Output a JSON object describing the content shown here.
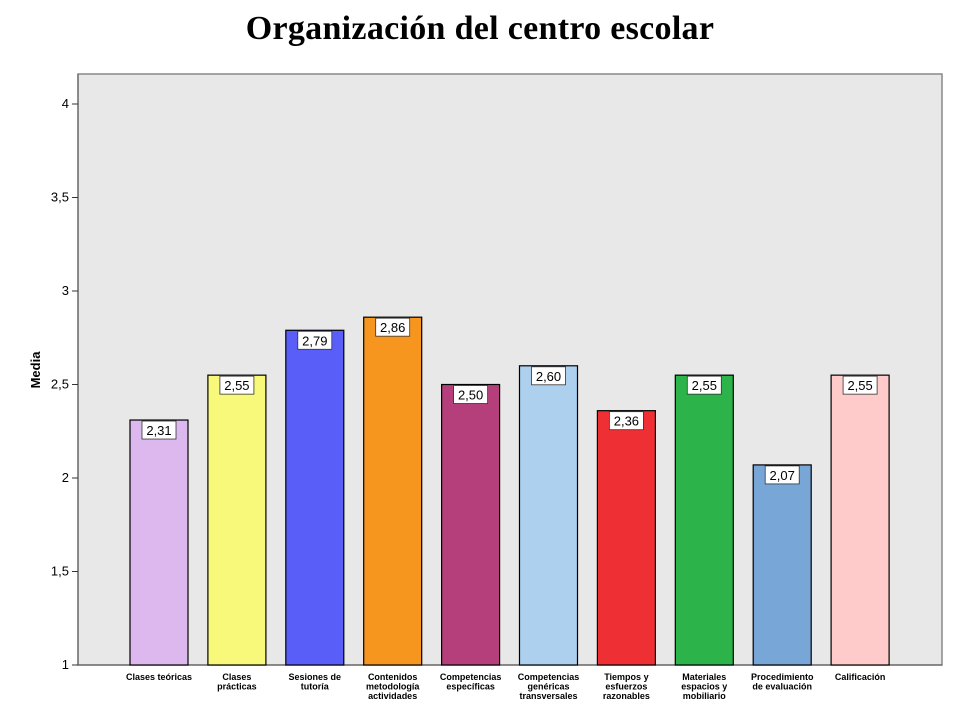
{
  "chart_data": {
    "type": "bar",
    "title": "Organización del centro escolar",
    "xlabel": "",
    "ylabel": "Media",
    "ylim": [
      1,
      4
    ],
    "yticks": [
      "1",
      "1,5",
      "2",
      "2,5",
      "3",
      "3,5",
      "4"
    ],
    "categories": [
      [
        "Clases teóricas"
      ],
      [
        "Clases",
        "prácticas"
      ],
      [
        "Sesiones de",
        "tutoría"
      ],
      [
        "Contenidos",
        "metodología",
        "actividades"
      ],
      [
        "Competencias",
        "específicas"
      ],
      [
        "Competencias",
        "genéricas",
        "transversales"
      ],
      [
        "Tiempos y",
        "esfuerzos",
        "razonables"
      ],
      [
        "Materiales",
        "espacios y",
        "mobiliario"
      ],
      [
        "Procedimiento",
        "de evaluación"
      ],
      [
        "Calificación"
      ]
    ],
    "values": [
      2.31,
      2.55,
      2.79,
      2.86,
      2.5,
      2.6,
      2.36,
      2.55,
      2.07,
      2.55
    ],
    "value_labels": [
      "2,31",
      "2,55",
      "2,79",
      "2,86",
      "2,50",
      "2,60",
      "2,36",
      "2,55",
      "2,07",
      "2,55"
    ],
    "colors": [
      "#dcb8ee",
      "#f8f87a",
      "#5a5ef8",
      "#f7961e",
      "#b53f7a",
      "#acd0ee",
      "#ee2f34",
      "#2cb44a",
      "#78a7d7",
      "#fecbca"
    ],
    "plot_background": "#e8e8e8",
    "grid": false
  }
}
